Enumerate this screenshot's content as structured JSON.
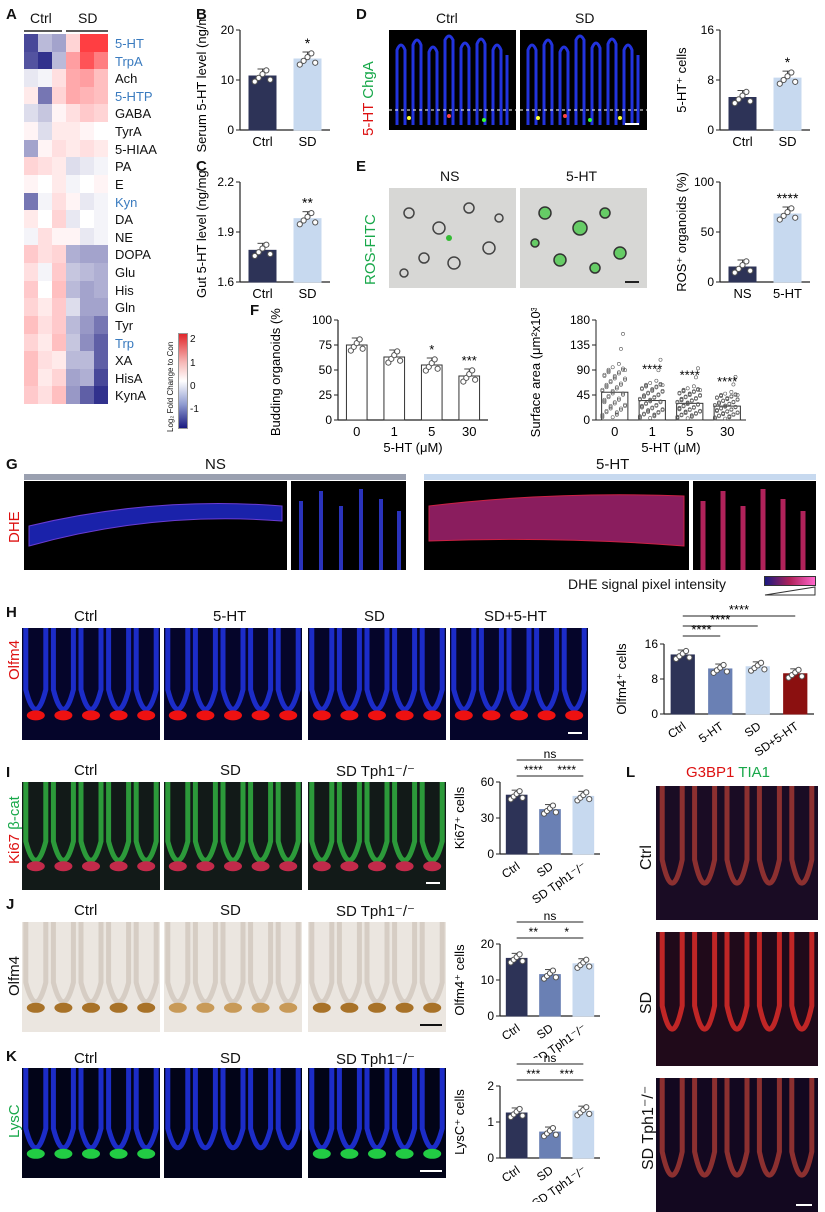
{
  "panelA": {
    "letter": "A",
    "groups": [
      "Ctrl",
      "SD"
    ],
    "rows": [
      {
        "label": "5-HT",
        "highlight": true
      },
      {
        "label": "TrpA",
        "highlight": true
      },
      {
        "label": "Ach",
        "highlight": false
      },
      {
        "label": "5-HTP",
        "highlight": true
      },
      {
        "label": "GABA",
        "highlight": false
      },
      {
        "label": "TyrA",
        "highlight": false
      },
      {
        "label": "5-HIAA",
        "highlight": false
      },
      {
        "label": "PA",
        "highlight": false
      },
      {
        "label": "E",
        "highlight": false
      },
      {
        "label": "Kyn",
        "highlight": true
      },
      {
        "label": "DA",
        "highlight": false
      },
      {
        "label": "NE",
        "highlight": false
      },
      {
        "label": "DOPA",
        "highlight": false
      },
      {
        "label": "Glu",
        "highlight": false
      },
      {
        "label": "His",
        "highlight": false
      },
      {
        "label": "Gln",
        "highlight": false
      },
      {
        "label": "Tyr",
        "highlight": false
      },
      {
        "label": "Trp",
        "highlight": true
      },
      {
        "label": "XA",
        "highlight": false
      },
      {
        "label": "HisA",
        "highlight": false
      },
      {
        "label": "KynA",
        "highlight": false
      }
    ],
    "values": [
      [
        -1.6,
        -0.6,
        -0.8,
        0.4,
        1.8,
        1.8
      ],
      [
        -1.5,
        -1.8,
        -0.6,
        0.9,
        1.6,
        1.2
      ],
      [
        -0.2,
        -0.1,
        0.3,
        0.8,
        0.9,
        0.6
      ],
      [
        0.2,
        -1.2,
        0.4,
        0.8,
        0.7,
        0.6
      ],
      [
        -0.3,
        -0.5,
        0.1,
        0.3,
        0.5,
        0.4
      ],
      [
        0.1,
        -0.3,
        0.2,
        0.2,
        0.1,
        0.0
      ],
      [
        -0.8,
        0.1,
        0.3,
        0.2,
        0.3,
        0.2
      ],
      [
        0.4,
        0.3,
        0.2,
        -0.3,
        -0.2,
        -0.1
      ],
      [
        0.1,
        0.0,
        0.2,
        -0.1,
        0.0,
        0.1
      ],
      [
        -1.2,
        -0.1,
        0.3,
        0.1,
        -0.2,
        -0.1
      ],
      [
        0.2,
        0.0,
        0.4,
        -0.2,
        0.0,
        -0.1
      ],
      [
        -0.1,
        0.3,
        0.1,
        0.1,
        -0.2,
        -0.1
      ],
      [
        0.5,
        0.3,
        0.4,
        -0.7,
        -0.8,
        -0.8
      ],
      [
        0.3,
        -0.1,
        0.5,
        -0.5,
        -0.6,
        -0.7
      ],
      [
        0.5,
        0.0,
        0.6,
        -0.6,
        -0.8,
        -0.7
      ],
      [
        0.4,
        0.2,
        0.5,
        -0.3,
        -0.8,
        -0.8
      ],
      [
        0.6,
        0.3,
        0.5,
        -0.6,
        -0.9,
        -1.2
      ],
      [
        0.4,
        0.2,
        0.6,
        -0.5,
        -1.0,
        -1.4
      ],
      [
        0.6,
        0.3,
        0.2,
        -0.6,
        -0.6,
        -1.4
      ],
      [
        0.6,
        0.2,
        0.4,
        -0.8,
        -0.7,
        -1.6
      ],
      [
        0.5,
        0.3,
        0.6,
        -0.9,
        -1.4,
        -1.8
      ]
    ],
    "colorbar": {
      "label": "Log₂ Fold Change to Con",
      "ticks": [
        "2",
        "1",
        "0",
        "-1"
      ],
      "range": [
        -2,
        2
      ]
    }
  },
  "panelB": {
    "letter": "B",
    "ylabel": "Serum 5-HT level (ng/ml)",
    "yticks": [
      "20",
      "10",
      "0"
    ],
    "categories": [
      "Ctrl",
      "SD"
    ],
    "values": [
      10.8,
      14.2
    ],
    "ylim": [
      0,
      20
    ],
    "sig": "*"
  },
  "panelC": {
    "letter": "C",
    "ylabel": "Gut 5-HT level (ng/mg)",
    "yticks": [
      "2.2",
      "1.9",
      "1.6"
    ],
    "categories": [
      "Ctrl",
      "SD"
    ],
    "values": [
      1.79,
      1.98
    ],
    "ylim": [
      1.6,
      2.2
    ],
    "sig": "**"
  },
  "panelD": {
    "letter": "D",
    "images": [
      "Ctrl",
      "SD"
    ],
    "stain_red": "5-HT",
    "stain_green": "ChgA",
    "chart": {
      "ylabel": "5-HT⁺ cells",
      "yticks": [
        "16",
        "8",
        "0"
      ],
      "categories": [
        "Ctrl",
        "SD"
      ],
      "values": [
        5.2,
        8.3
      ],
      "ylim": [
        0,
        16
      ],
      "sig": "*"
    }
  },
  "panelE": {
    "letter": "E",
    "images": [
      "NS",
      "5-HT"
    ],
    "stain": "ROS-FITC",
    "chart": {
      "ylabel": "ROS⁺ organoids (%)",
      "yticks": [
        "100",
        "50",
        "0"
      ],
      "categories": [
        "NS",
        "5-HT"
      ],
      "values": [
        15,
        68
      ],
      "ylim": [
        0,
        100
      ],
      "sig": "****"
    }
  },
  "panelF": {
    "letter": "F",
    "budding": {
      "ylabel": "Budding organoids (%)",
      "yticks": [
        "100",
        "75",
        "50",
        "25",
        "0"
      ],
      "categories": [
        "0",
        "1",
        "5",
        "30"
      ],
      "values": [
        75,
        63,
        55,
        44
      ],
      "ylim": [
        0,
        100
      ],
      "sigs": [
        "",
        "",
        "*",
        "***"
      ],
      "xlabel": "5-HT (μM)"
    },
    "surface": {
      "ylabel": "Surface area (μm²x10³)",
      "yticks": [
        "180",
        "135",
        "90",
        "45",
        "0"
      ],
      "categories": [
        "0",
        "1",
        "5",
        "30"
      ],
      "values": [
        50,
        35,
        30,
        25
      ],
      "ylim": [
        0,
        180
      ],
      "sigs": [
        "",
        "****",
        "****",
        "****"
      ],
      "xlabel": "5-HT (μM)"
    }
  },
  "panelG": {
    "letter": "G",
    "stain": "DHE",
    "conditions": [
      "NS",
      "5-HT"
    ],
    "intensity_label": "DHE signal pixel intensity"
  },
  "panelH": {
    "letter": "H",
    "stain": "Olfm4",
    "images": [
      "Ctrl",
      "5-HT",
      "SD",
      "SD+5-HT"
    ],
    "chart": {
      "ylabel": "Olfm4⁺ cells",
      "yticks": [
        "16",
        "8",
        "0"
      ],
      "categories": [
        "Ctrl",
        "5-HT",
        "SD",
        "SD+5-HT"
      ],
      "values": [
        13.5,
        10.3,
        10.8,
        9.2
      ],
      "ylim": [
        0,
        16
      ],
      "sigs": [
        "****",
        "****",
        "****"
      ]
    }
  },
  "panelI": {
    "letter": "I",
    "stain_red": "Ki67",
    "stain_green": "β-cat",
    "images": [
      "Ctrl",
      "SD",
      "SD Tph1⁻/⁻"
    ],
    "chart": {
      "ylabel": "Ki67⁺ cells",
      "yticks": [
        "60",
        "30",
        "0"
      ],
      "categories": [
        "Ctrl",
        "SD",
        "SD Tph1⁻/⁻"
      ],
      "values": [
        49,
        37,
        48
      ],
      "ylim": [
        0,
        60
      ],
      "sigs": [
        "****",
        "****",
        "ns"
      ]
    }
  },
  "panelJ": {
    "letter": "J",
    "stain": "Olfm4",
    "images": [
      "Ctrl",
      "SD",
      "SD Tph1⁻/⁻"
    ],
    "chart": {
      "ylabel": "Olfm4⁺ cells",
      "yticks": [
        "20",
        "10",
        "0"
      ],
      "categories": [
        "Ctrl",
        "SD",
        "SD Tph1⁻/⁻"
      ],
      "values": [
        16,
        11.5,
        14.5
      ],
      "ylim": [
        0,
        20
      ],
      "sigs": [
        "**",
        "*",
        "ns"
      ]
    }
  },
  "panelK": {
    "letter": "K",
    "stain": "LysC",
    "images": [
      "Ctrl",
      "SD",
      "SD Tph1⁻/⁻"
    ],
    "chart": {
      "ylabel": "LysC⁺ cells",
      "yticks": [
        "2",
        "1",
        "0"
      ],
      "categories": [
        "Ctrl",
        "SD",
        "SD Tph1⁻/⁻"
      ],
      "values": [
        1.25,
        0.72,
        1.3
      ],
      "ylim": [
        0,
        2
      ],
      "sigs": [
        "***",
        "***",
        "ns"
      ]
    }
  },
  "panelL": {
    "letter": "L",
    "stain_red": "G3BP1",
    "stain_green": "TIA1",
    "rows": [
      "Ctrl",
      "SD",
      "SD Tph1⁻/⁻"
    ]
  },
  "colors": {
    "ctrl": "#2d3357",
    "light": "#c7d9ef",
    "mid": "#6a80b4",
    "dark_red": "#8b1010",
    "accent_blue": "#3a7bbf"
  }
}
